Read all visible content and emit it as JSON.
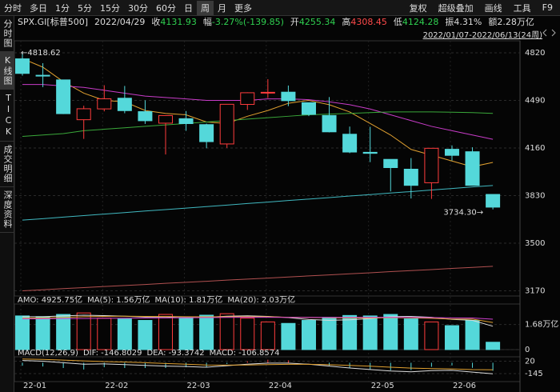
{
  "toolbar": {
    "periods": [
      "分时",
      "多日",
      "1分",
      "5分",
      "15分",
      "30分",
      "60分",
      "日",
      "周",
      "月",
      "更多"
    ],
    "selected": 8,
    "tools": [
      "复权",
      "超级叠加",
      "画线",
      "工具",
      "F9"
    ]
  },
  "sidebar": {
    "tabs": [
      "分时图",
      "K线图",
      "TICK",
      "成交明细",
      "深度资料"
    ],
    "selected": 1
  },
  "info": {
    "symbol": "SPX.GI[标普500]",
    "date": "2022/04/29",
    "fields": [
      {
        "label": "收",
        "value": 4131.93,
        "color": "#2fd050"
      },
      {
        "label": "幅",
        "value": "-3.27%(-139.85)",
        "color": "#2fd050"
      },
      {
        "label": "开",
        "value": 4255.34,
        "color": "#2fd050"
      },
      {
        "label": "高",
        "value": 4308.45,
        "color": "#ff4a4a"
      },
      {
        "label": "低",
        "value": 4124.28,
        "color": "#2fd050"
      },
      {
        "label": "振",
        "value": "4.31%",
        "color": "#dddddd"
      },
      {
        "label": "额",
        "value": "2.28万亿",
        "color": "#dddddd"
      }
    ],
    "range": "2022/01/07-2022/06/13(24周)"
  },
  "price_chart": {
    "type": "candlestick",
    "categories": [
      "22-01",
      null,
      null,
      null,
      "22-02",
      null,
      null,
      null,
      "22-03",
      null,
      null,
      null,
      "22-04",
      null,
      null,
      null,
      null,
      "22-05",
      null,
      null,
      null,
      "22-06",
      null,
      null
    ],
    "open": [
      4778,
      4664,
      4632,
      4356,
      4431,
      4505,
      4412,
      4332,
      4363,
      4322,
      4188,
      4462,
      4541,
      4547,
      4474,
      4385,
      4255.34,
      4130,
      4081,
      4013,
      3919,
      4151,
      4134,
      3838
    ],
    "high": [
      4818.62,
      4748,
      4632,
      4453,
      4595,
      4590,
      4490,
      4385,
      4416,
      4329,
      4465,
      4546,
      4637,
      4593,
      4471,
      4513,
      4308.45,
      4307,
      4081,
      4090,
      4158,
      4178,
      4165,
      3838
    ],
    "low": [
      4662,
      4582,
      4395,
      4223,
      4414,
      4401,
      4327,
      4115,
      4279,
      4158,
      4161,
      4424,
      4506,
      4450,
      4381,
      4268,
      4124.28,
      4062,
      3859,
      3810,
      3807,
      4073,
      3900,
      3734.3
    ],
    "close": [
      4677,
      4663,
      4398,
      4432,
      4501,
      4419,
      4349,
      4385,
      4329,
      4204,
      4463,
      4543,
      4546,
      4488,
      4393,
      4272,
      4131.93,
      4123,
      4024,
      3901,
      4158,
      4109,
      3901,
      3750
    ],
    "up_color": "#ff3c3c",
    "down_color": "#54d8da",
    "high_label": "←4818.62",
    "low_label": "3734.30→",
    "ylim": [
      3134,
      4903
    ],
    "yticks": [
      4820,
      4490,
      4160,
      3830,
      3500,
      3170
    ],
    "grid": true,
    "lines": [
      {
        "color": "#e0a030",
        "values": [
          4780,
          4720,
          4620,
          4540,
          4490,
          4480,
          4420,
          4400,
          4390,
          4340,
          4330,
          4380,
          4420,
          4470,
          4490,
          4460,
          4410,
          4330,
          4250,
          4150,
          4110,
          4070,
          4030,
          4060
        ]
      },
      {
        "color": "#c83cc8",
        "values": [
          4600,
          4600,
          4590,
          4580,
          4560,
          4540,
          4520,
          4510,
          4500,
          4490,
          4490,
          4490,
          4500,
          4500,
          4495,
          4480,
          4460,
          4430,
          4390,
          4350,
          4310,
          4280,
          4250,
          4220
        ]
      },
      {
        "color": "#3aa83a",
        "values": [
          4240,
          4250,
          4260,
          4280,
          4290,
          4300,
          4310,
          4320,
          4330,
          4340,
          4350,
          4360,
          4370,
          4380,
          4390,
          4395,
          4400,
          4405,
          4410,
          4410,
          4410,
          4408,
          4405,
          4400
        ]
      },
      {
        "color": "#40b8c0",
        "values": [
          3660,
          3670,
          3681,
          3691,
          3702,
          3712,
          3723,
          3733,
          3743,
          3754,
          3764,
          3775,
          3785,
          3796,
          3806,
          3816,
          3827,
          3837,
          3848,
          3858,
          3869,
          3879,
          3890,
          3900
        ]
      },
      {
        "color": "#b05050",
        "values": [
          3170,
          3177,
          3185,
          3192,
          3200,
          3207,
          3214,
          3222,
          3229,
          3236,
          3244,
          3251,
          3258,
          3266,
          3273,
          3280,
          3288,
          3295,
          3303,
          3310,
          3317,
          3325,
          3332,
          3340
        ]
      }
    ]
  },
  "volume_chart": {
    "type": "bar",
    "legend": [
      {
        "text": "AMO: 4925.75亿",
        "color": "#dddddd"
      },
      {
        "text": "MA(5): 1.56万亿",
        "color": "#dddddd"
      },
      {
        "text": "MA(10): 1.81万亿",
        "color": "#e0a030"
      },
      {
        "text": "MA(20): 2.03万亿",
        "color": "#d040d0"
      }
    ],
    "values": [
      2.25,
      2.2,
      2.35,
      2.45,
      2.1,
      2.05,
      1.95,
      2.35,
      2.15,
      2.3,
      2.4,
      2.1,
      1.85,
      1.75,
      1.95,
      2.15,
      2.28,
      2.25,
      2.35,
      2.05,
      1.85,
      1.6,
      1.95,
      0.4926
    ],
    "ylim": [
      0,
      2.94
    ],
    "yticks": [
      {
        "value": 1.68,
        "label": "1.68万亿"
      },
      0
    ],
    "lines": [
      {
        "color": "#dddddd",
        "values": [
          2.2,
          2.2,
          2.25,
          2.3,
          2.27,
          2.23,
          2.18,
          2.18,
          2.12,
          2.16,
          2.23,
          2.26,
          2.22,
          2.14,
          2.01,
          1.96,
          1.99,
          2.07,
          2.2,
          2.22,
          2.16,
          2.02,
          1.96,
          1.56
        ]
      },
      {
        "color": "#e0a030",
        "values": [
          2.1,
          2.12,
          2.15,
          2.2,
          2.22,
          2.23,
          2.22,
          2.21,
          2.2,
          2.19,
          2.2,
          2.2,
          2.2,
          2.16,
          2.15,
          2.13,
          2.11,
          2.12,
          2.13,
          2.12,
          2.09,
          2.04,
          2.04,
          1.81
        ]
      },
      {
        "color": "#d040d0",
        "values": [
          2.05,
          2.06,
          2.07,
          2.08,
          2.09,
          2.1,
          2.11,
          2.12,
          2.13,
          2.14,
          2.15,
          2.16,
          2.16,
          2.15,
          2.15,
          2.15,
          2.15,
          2.16,
          2.16,
          2.15,
          2.14,
          2.12,
          2.11,
          2.03
        ]
      }
    ]
  },
  "macd_chart": {
    "type": "macd",
    "legend": [
      {
        "text": "MACD(12,26,9)",
        "color": "#dddddd"
      },
      {
        "text": "DIF: -146.8029",
        "color": "#dddddd"
      },
      {
        "text": "DEA: -93.3742",
        "color": "#e0a030"
      },
      {
        "text": "MACD: -106.8574",
        "color": "#54d8da"
      }
    ],
    "ylim": [
      -251,
      79
    ],
    "yticks": [
      20,
      -145
    ],
    "dif": {
      "color": "#dddddd",
      "values": [
        30,
        20,
        0,
        -20,
        -15,
        -25,
        -35,
        -45,
        -50,
        -60,
        -40,
        -20,
        -5,
        -5,
        -20,
        -45,
        -70,
        -90,
        -110,
        -120,
        -105,
        -100,
        -125,
        -146.8029
      ]
    },
    "dea": {
      "color": "#e0a030",
      "values": [
        50,
        45,
        35,
        25,
        15,
        10,
        0,
        -10,
        -20,
        -30,
        -32,
        -30,
        -25,
        -21,
        -21,
        -26,
        -35,
        -46,
        -59,
        -71,
        -78,
        -82,
        -91,
        -93.3742
      ]
    },
    "hist": {
      "up_color": "#ff3c3c",
      "down_color": "#54d8da",
      "values": [
        -40,
        -50,
        -70,
        -90,
        -60,
        -70,
        -70,
        -70,
        -60,
        -60,
        -16,
        20,
        40,
        32,
        2,
        -38,
        -70,
        -88,
        -102,
        -98,
        -54,
        -36,
        -68,
        -106.8574
      ]
    }
  }
}
